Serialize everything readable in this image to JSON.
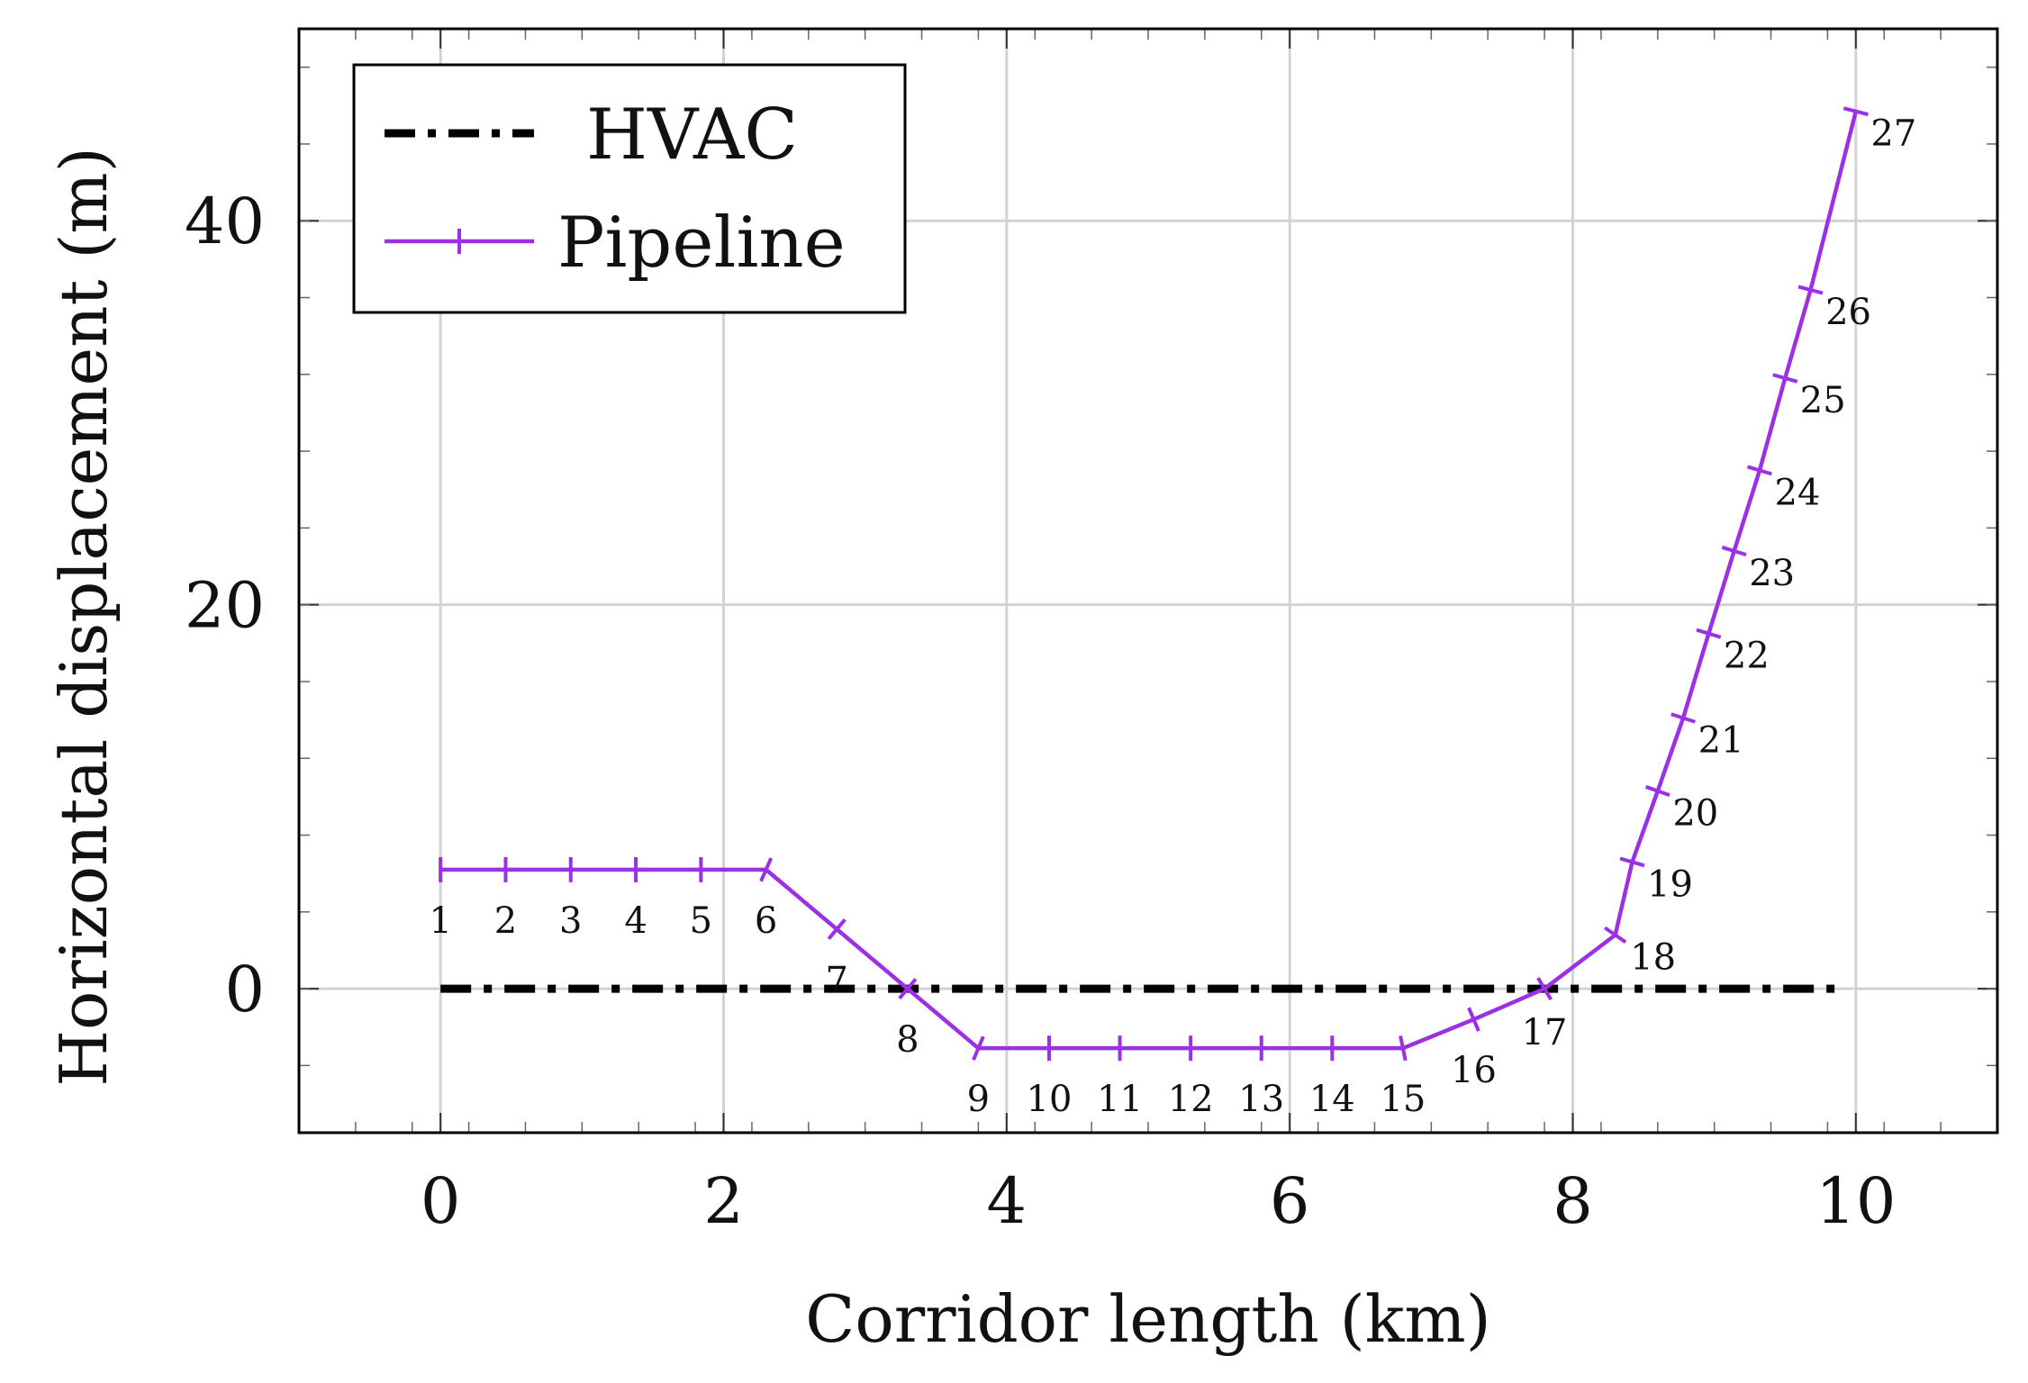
{
  "chart_data": {
    "type": "line",
    "title": "",
    "xlabel": "Corridor length (km)",
    "ylabel": "Horizontal displacement (m)",
    "xlim": [
      -1,
      11
    ],
    "ylim": [
      -7.5,
      50
    ],
    "x_ticks": [
      0,
      2,
      4,
      6,
      8,
      10
    ],
    "x_tick_labels": [
      "0",
      "2",
      "4",
      "6",
      "8",
      "10"
    ],
    "y_ticks": [
      0,
      20,
      40
    ],
    "y_tick_labels": [
      "0",
      "20",
      "40"
    ],
    "grid": true,
    "legend_position": "top-left",
    "series": [
      {
        "name": "HVAC",
        "style": "dash-dot",
        "color": "#000000",
        "x": [
          0,
          9.9
        ],
        "y": [
          0,
          0
        ]
      },
      {
        "name": "Pipeline",
        "style": "solid-with-bar-markers",
        "color": "#9B30E6",
        "labels": [
          "1",
          "2",
          "3",
          "4",
          "5",
          "6",
          "7",
          "8",
          "9",
          "10",
          "11",
          "12",
          "13",
          "14",
          "15",
          "16",
          "17",
          "18",
          "19",
          "20",
          "21",
          "22",
          "23",
          "24",
          "25",
          "26",
          "27"
        ],
        "x": [
          0,
          0.46,
          0.92,
          1.38,
          1.84,
          2.3,
          2.8,
          3.3,
          3.8,
          4.3,
          4.8,
          5.3,
          5.8,
          6.3,
          6.8,
          7.3,
          7.8,
          8.3,
          8.42,
          8.6,
          8.78,
          8.96,
          9.14,
          9.32,
          9.5,
          9.68,
          10.0
        ],
        "y": [
          6.2,
          6.2,
          6.2,
          6.2,
          6.2,
          6.2,
          3.1,
          0,
          -3.1,
          -3.1,
          -3.1,
          -3.1,
          -3.1,
          -3.1,
          -3.1,
          -1.6,
          0,
          2.8,
          6.6,
          10.3,
          14.1,
          18.5,
          22.8,
          27.0,
          31.8,
          36.4,
          45.7
        ]
      }
    ]
  }
}
